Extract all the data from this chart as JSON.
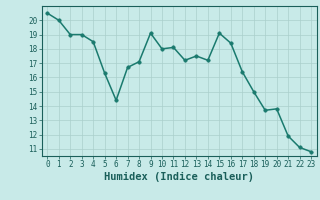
{
  "x": [
    0,
    1,
    2,
    3,
    4,
    5,
    6,
    7,
    8,
    9,
    10,
    11,
    12,
    13,
    14,
    15,
    16,
    17,
    18,
    19,
    20,
    21,
    22,
    23
  ],
  "y": [
    20.5,
    20.0,
    19.0,
    19.0,
    18.5,
    16.3,
    14.4,
    16.7,
    17.1,
    19.1,
    18.0,
    18.1,
    17.2,
    17.5,
    17.2,
    19.1,
    18.4,
    16.4,
    15.0,
    13.7,
    13.8,
    11.9,
    11.1,
    10.8
  ],
  "line_color": "#1a7a6e",
  "marker_color": "#1a7a6e",
  "bg_color": "#c8eae8",
  "grid_color": "#aacfcc",
  "xlabel": "Humidex (Indice chaleur)",
  "ylim_min": 10.5,
  "ylim_max": 21.0,
  "xlim_min": -0.5,
  "xlim_max": 23.5,
  "yticks": [
    11,
    12,
    13,
    14,
    15,
    16,
    17,
    18,
    19,
    20
  ],
  "xticks": [
    0,
    1,
    2,
    3,
    4,
    5,
    6,
    7,
    8,
    9,
    10,
    11,
    12,
    13,
    14,
    15,
    16,
    17,
    18,
    19,
    20,
    21,
    22,
    23
  ],
  "tick_color": "#1a5f5a",
  "spine_color": "#1a5f5a",
  "xlabel_fontsize": 7.5,
  "tick_fontsize": 5.5,
  "marker_size": 2.5,
  "line_width": 1.1
}
